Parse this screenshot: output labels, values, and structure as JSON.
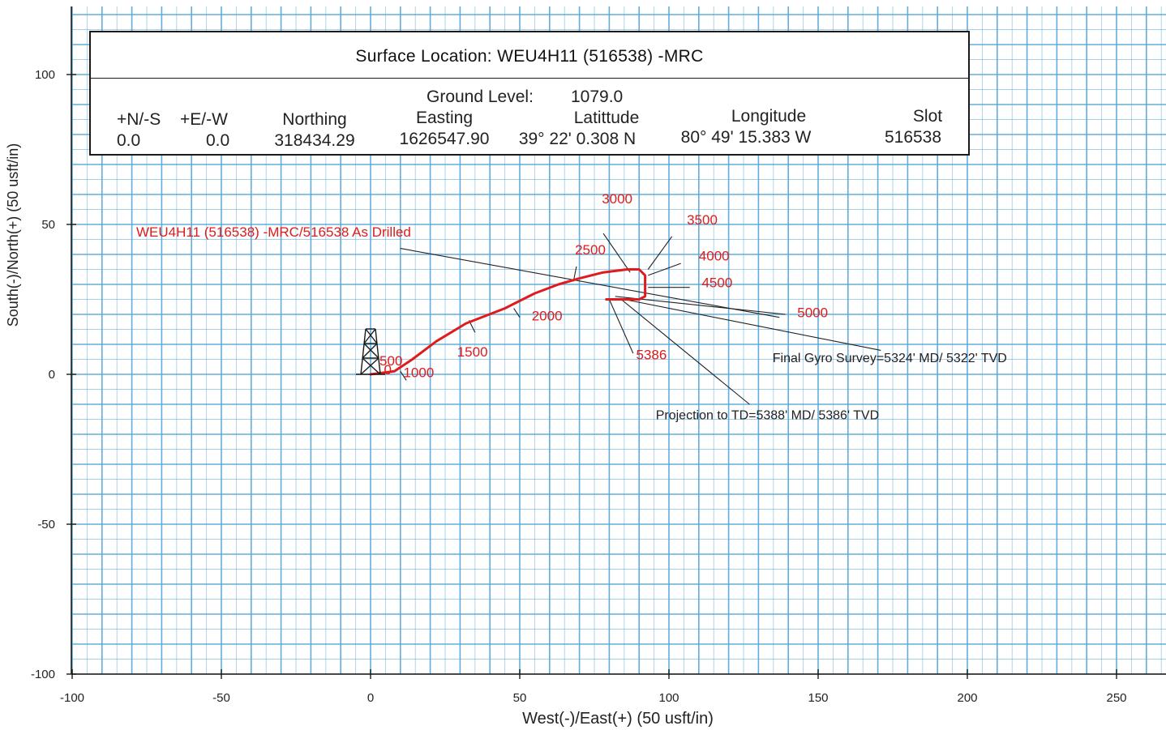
{
  "header": {
    "surface_location_label": "Surface Location:",
    "surface_location_value": "WEU4H11 (516538) -MRC",
    "ground_level_label": "Ground Level:",
    "ground_level_value": "1079.0",
    "columns": {
      "ns": {
        "header": "+N/-S",
        "value": "0.0"
      },
      "ew": {
        "header": "+E/-W",
        "value": "0.0"
      },
      "northing": {
        "header": "Northing",
        "value": "318434.29"
      },
      "easting": {
        "header": "Easting",
        "value": "1626547.90"
      },
      "latitude": {
        "header": "Latittude",
        "value": "39° 22' 0.308 N"
      },
      "longitude": {
        "header": "Longitude",
        "value": "80° 49' 15.383 W"
      },
      "slot": {
        "header": "Slot",
        "value": "516538"
      }
    }
  },
  "chart_data": {
    "type": "line",
    "xlabel": "West(-)/East(+) (50 usft/in)",
    "ylabel": "South(-)/North(+) (50 usft/in)",
    "xlim": [
      -100,
      260
    ],
    "ylim": [
      -100,
      120
    ],
    "x_ticks": [
      -100,
      -50,
      0,
      50,
      100,
      150,
      200,
      250
    ],
    "y_ticks": [
      100,
      50,
      0,
      -50,
      -100
    ],
    "grid": true,
    "colors": {
      "well_path": "#e01b1b",
      "grid": "#5aa9d8",
      "leaders": "#222222"
    },
    "series": [
      {
        "name": "WEU4H11 (516538) -MRC/516538 As Drilled",
        "x": [
          0,
          4,
          8,
          14,
          22,
          32,
          45,
          55,
          63,
          70,
          78,
          86,
          90,
          92,
          92,
          90,
          84,
          79
        ],
        "y": [
          0,
          0.5,
          1,
          5,
          11,
          17,
          22,
          27,
          30,
          32,
          34,
          35,
          35,
          33,
          26,
          25,
          25,
          25
        ]
      }
    ],
    "md_labels": [
      {
        "text": "500",
        "x": 3,
        "y": 3
      },
      {
        "text": "0",
        "x": 4.5,
        "y": 0
      },
      {
        "text": "1000",
        "x": 11,
        "y": -1
      },
      {
        "text": "1500",
        "x": 29,
        "y": 6
      },
      {
        "text": "2000",
        "x": 54,
        "y": 18
      },
      {
        "text": "2500",
        "x": 68.5,
        "y": 40
      },
      {
        "text": "3000",
        "x": 77.5,
        "y": 57
      },
      {
        "text": "3500",
        "x": 106,
        "y": 50
      },
      {
        "text": "4000",
        "x": 110,
        "y": 38
      },
      {
        "text": "4500",
        "x": 111,
        "y": 29
      },
      {
        "text": "5000",
        "x": 143,
        "y": 19
      },
      {
        "text": "5386",
        "x": 89,
        "y": 5
      }
    ],
    "annotations": [
      {
        "text": "Final Gyro Survey=5324' MD/ 5322' TVD",
        "x": 174,
        "y": 4
      },
      {
        "text": "Projection to TD=5388' MD/ 5386' TVD",
        "x": 133,
        "y": -15
      }
    ]
  }
}
